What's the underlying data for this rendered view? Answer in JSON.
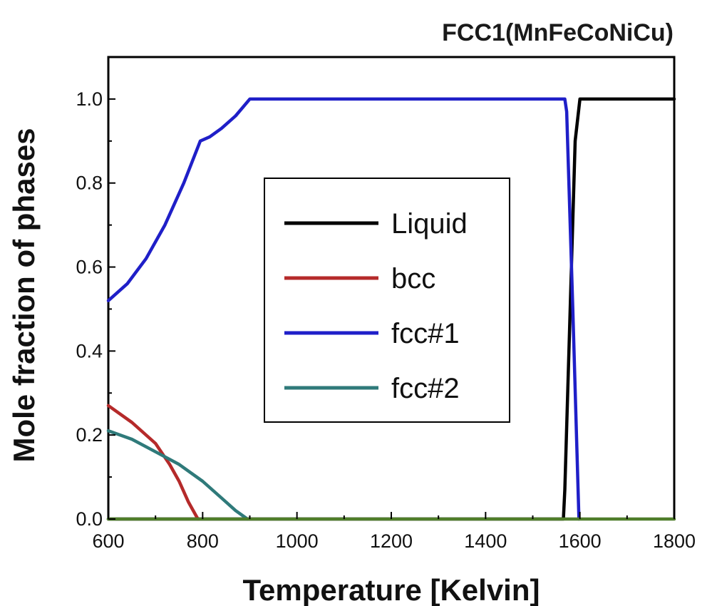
{
  "chart_data": {
    "type": "line",
    "title": "FCC1(MnFeCoNiCu)",
    "xlabel": "Temperature [Kelvin]",
    "ylabel": "Mole fraction of phases",
    "xlim": [
      600,
      1800
    ],
    "ylim": [
      0,
      1.1
    ],
    "xticks": [
      600,
      800,
      1000,
      1200,
      1400,
      1600,
      1800
    ],
    "yticks": [
      0.0,
      0.2,
      0.4,
      0.6,
      0.8,
      1.0
    ],
    "xtick_labels": [
      "600",
      "800",
      "1000",
      "1200",
      "1400",
      "1600",
      "1800"
    ],
    "ytick_labels": [
      "0.0",
      "0.2",
      "0.4",
      "0.6",
      "0.8",
      "1.0"
    ],
    "grid": false,
    "legend_position": "center",
    "series": [
      {
        "name": "Liquid",
        "color": "#000000",
        "x": [
          600,
          1565,
          1568,
          1590,
          1600,
          1800
        ],
        "y": [
          0.0,
          0.0,
          0.07,
          0.9,
          1.0,
          1.0
        ]
      },
      {
        "name": "bcc",
        "color": "#b52a2a",
        "x": [
          600,
          650,
          700,
          730,
          750,
          770,
          785,
          790
        ],
        "y": [
          0.27,
          0.23,
          0.18,
          0.13,
          0.09,
          0.04,
          0.01,
          0.0
        ]
      },
      {
        "name": "fcc#1",
        "color": "#1f1fc8",
        "x": [
          600,
          640,
          680,
          720,
          760,
          795,
          815,
          840,
          870,
          900,
          1400,
          1568,
          1572,
          1585,
          1598
        ],
        "y": [
          0.52,
          0.56,
          0.62,
          0.7,
          0.8,
          0.9,
          0.91,
          0.93,
          0.96,
          1.0,
          1.0,
          1.0,
          0.97,
          0.5,
          0.0
        ]
      },
      {
        "name": "fcc#2",
        "color": "#2f7a7a",
        "x": [
          600,
          650,
          700,
          750,
          800,
          840,
          870,
          895
        ],
        "y": [
          0.21,
          0.19,
          0.16,
          0.13,
          0.09,
          0.05,
          0.02,
          0.0
        ]
      },
      {
        "name": "",
        "color": "#4f7d2a",
        "x": [
          600,
          1800
        ],
        "y": [
          0.0,
          0.0
        ]
      }
    ]
  }
}
